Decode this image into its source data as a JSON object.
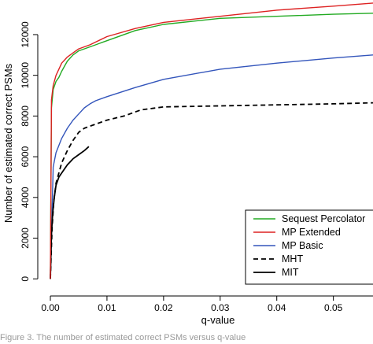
{
  "chart_data": {
    "type": "line",
    "xlabel": "q-value",
    "ylabel": "Number of estimated correct PSMs",
    "xlim": [
      0,
      0.057
    ],
    "ylim": [
      -300,
      13700
    ],
    "x_ticks": [
      0.0,
      0.01,
      0.02,
      0.03,
      0.04,
      0.05
    ],
    "x_tick_labels": [
      "0.00",
      "0.01",
      "0.02",
      "0.03",
      "0.04",
      "0.05"
    ],
    "y_ticks": [
      0,
      2000,
      4000,
      6000,
      8000,
      10000,
      12000
    ],
    "y_tick_labels": [
      "0",
      "2000",
      "4000",
      "6000",
      "8000",
      "10000",
      "12000"
    ],
    "grid": false,
    "legend_position": "bottom-right",
    "series": [
      {
        "name": "Sequest Percolator",
        "color": "#22aa22",
        "dash": "solid",
        "x": [
          0,
          0.0002,
          0.0005,
          0.001,
          0.0015,
          0.002,
          0.003,
          0.004,
          0.005,
          0.007,
          0.01,
          0.015,
          0.02,
          0.03,
          0.04,
          0.05,
          0.057
        ],
        "y": [
          0,
          8400,
          9300,
          9700,
          9900,
          10200,
          10700,
          11000,
          11200,
          11400,
          11700,
          12200,
          12500,
          12800,
          12900,
          13000,
          13050
        ]
      },
      {
        "name": "MP Extended",
        "color": "#dd2222",
        "dash": "solid",
        "x": [
          0,
          0.0002,
          0.0005,
          0.001,
          0.0015,
          0.002,
          0.003,
          0.004,
          0.005,
          0.007,
          0.01,
          0.015,
          0.02,
          0.03,
          0.04,
          0.05,
          0.057
        ],
        "y": [
          0,
          8800,
          9500,
          10000,
          10300,
          10600,
          10900,
          11100,
          11300,
          11500,
          11900,
          12300,
          12600,
          12900,
          13200,
          13400,
          13550
        ]
      },
      {
        "name": "MP Basic",
        "color": "#3355bb",
        "dash": "solid",
        "x": [
          0,
          0.0005,
          0.001,
          0.002,
          0.003,
          0.004,
          0.005,
          0.006,
          0.007,
          0.008,
          0.01,
          0.015,
          0.02,
          0.03,
          0.04,
          0.05,
          0.057
        ],
        "y": [
          0,
          5500,
          6200,
          6900,
          7400,
          7800,
          8100,
          8400,
          8600,
          8750,
          8950,
          9400,
          9800,
          10300,
          10600,
          10850,
          11000
        ]
      },
      {
        "name": "MHT",
        "color": "#000000",
        "dash": "dashed",
        "x": [
          0,
          0.0003,
          0.0006,
          0.001,
          0.002,
          0.003,
          0.004,
          0.005,
          0.006,
          0.008,
          0.01,
          0.013,
          0.016,
          0.02,
          0.03,
          0.04,
          0.05,
          0.057
        ],
        "y": [
          0,
          2500,
          3800,
          4700,
          5700,
          6300,
          6800,
          7200,
          7400,
          7600,
          7800,
          8000,
          8300,
          8450,
          8500,
          8550,
          8600,
          8650
        ]
      },
      {
        "name": "MIT",
        "color": "#000000",
        "dash": "solid",
        "x": [
          0,
          0.0002,
          0.0004,
          0.0007,
          0.001,
          0.0015,
          0.002,
          0.003,
          0.004,
          0.005,
          0.006,
          0.0068
        ],
        "y": [
          0,
          2200,
          3200,
          4000,
          4600,
          5000,
          5200,
          5600,
          5900,
          6100,
          6300,
          6500
        ]
      }
    ]
  },
  "caption": "Figure 3. The number of estimated correct PSMs versus q-value"
}
